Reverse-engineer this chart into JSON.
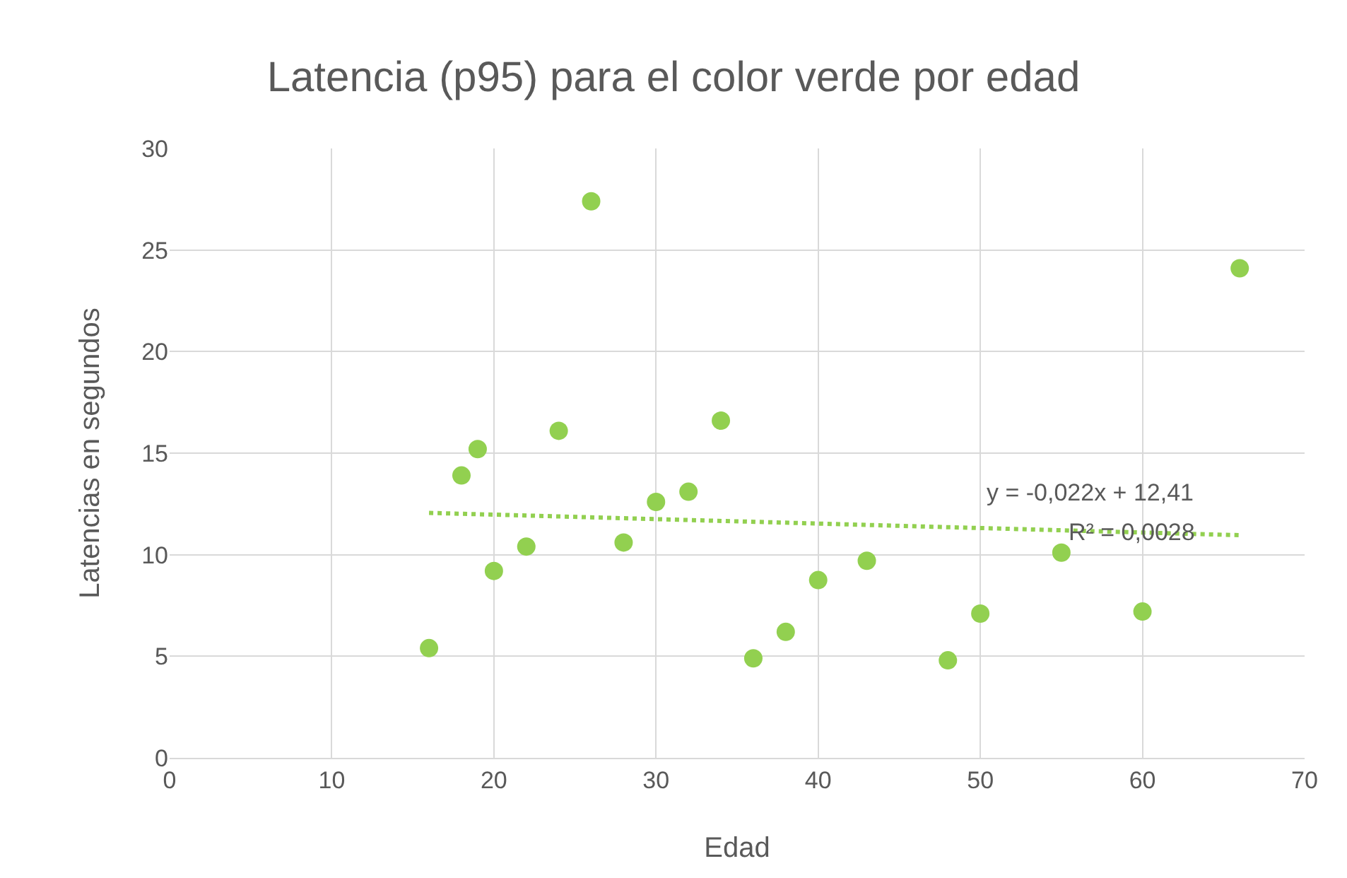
{
  "chart_data": {
    "type": "scatter",
    "title": "Latencia (p95) para el color verde por edad",
    "xlabel": "Edad",
    "ylabel": "Latencias en segundos",
    "xlim": [
      0,
      70
    ],
    "xticks": [
      0,
      10,
      20,
      30,
      40,
      50,
      60,
      70
    ],
    "ylim": [
      0,
      30
    ],
    "yticks": [
      0,
      5,
      10,
      15,
      20,
      25,
      30
    ],
    "grid": true,
    "marker": "circle",
    "series": [
      {
        "color": "#92d050",
        "x": [
          16,
          18,
          19,
          20,
          22,
          24,
          26,
          28,
          30,
          32,
          34,
          36,
          38,
          40,
          43,
          48,
          50,
          55,
          60,
          66
        ],
        "values": [
          5.4,
          13.9,
          15.2,
          9.2,
          10.4,
          16.1,
          27.4,
          10.6,
          12.6,
          13.1,
          16.6,
          4.9,
          6.2,
          8.75,
          9.7,
          4.8,
          7.1,
          10.1,
          7.2,
          24.1
        ]
      },
      {
        "type": "line",
        "color": "#92d050",
        "line_style": "dotted",
        "marker": "none",
        "x": [
          16,
          66
        ],
        "values": [
          12.06,
          10.96
        ]
      }
    ],
    "annotations": [
      "y = -0,022x + 12,41",
      "R² = 0,0028"
    ]
  }
}
